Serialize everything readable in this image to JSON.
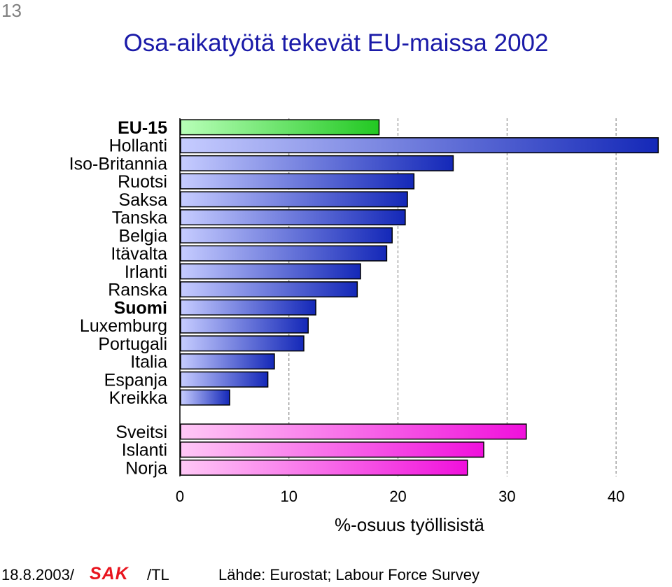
{
  "slide_number": "13",
  "title": "Osa-aikatyötä tekevät EU-maissa 2002",
  "footer": {
    "date": "18.8.2003/",
    "logo": "SAK",
    "author": "/TL",
    "source": "Lähde: Eurostat; Labour Force Survey"
  },
  "colors": {
    "eu15": "#2ecc2e",
    "eu_members": "#1a2fb0",
    "non_eu": "#ee10dd"
  },
  "chart_data": {
    "type": "bar",
    "orientation": "horizontal",
    "title": "Osa-aikatyötä tekevät EU-maissa 2002",
    "xlabel": "%-osuus työllisistä",
    "ylabel": "",
    "xlim": [
      0,
      45
    ],
    "xticks": [
      0,
      10,
      20,
      30,
      40
    ],
    "grid": "vertical dashed",
    "groups": [
      {
        "items": [
          {
            "label": "EU-15",
            "value": 18.2,
            "bold": true,
            "color": "eu15"
          },
          {
            "label": "Hollanti",
            "value": 43.8,
            "color": "eu_members"
          },
          {
            "label": "Iso-Britannia",
            "value": 25.0,
            "color": "eu_members"
          },
          {
            "label": "Ruotsi",
            "value": 21.4,
            "color": "eu_members"
          },
          {
            "label": "Saksa",
            "value": 20.8,
            "color": "eu_members"
          },
          {
            "label": "Tanska",
            "value": 20.6,
            "color": "eu_members"
          },
          {
            "label": "Belgia",
            "value": 19.4,
            "color": "eu_members"
          },
          {
            "label": "Itävalta",
            "value": 18.9,
            "color": "eu_members"
          },
          {
            "label": "Irlanti",
            "value": 16.5,
            "color": "eu_members"
          },
          {
            "label": "Ranska",
            "value": 16.2,
            "color": "eu_members"
          },
          {
            "label": "Suomi",
            "value": 12.4,
            "bold": true,
            "color": "eu_members"
          },
          {
            "label": "Luxemburg",
            "value": 11.7,
            "color": "eu_members"
          },
          {
            "label": "Portugali",
            "value": 11.3,
            "color": "eu_members"
          },
          {
            "label": "Italia",
            "value": 8.6,
            "color": "eu_members"
          },
          {
            "label": "Espanja",
            "value": 8.0,
            "color": "eu_members"
          },
          {
            "label": "Kreikka",
            "value": 4.5,
            "color": "eu_members"
          }
        ]
      },
      {
        "items": [
          {
            "label": "Sveitsi",
            "value": 31.7,
            "color": "non_eu"
          },
          {
            "label": "Islanti",
            "value": 27.8,
            "color": "non_eu"
          },
          {
            "label": "Norja",
            "value": 26.3,
            "color": "non_eu"
          }
        ]
      }
    ]
  }
}
